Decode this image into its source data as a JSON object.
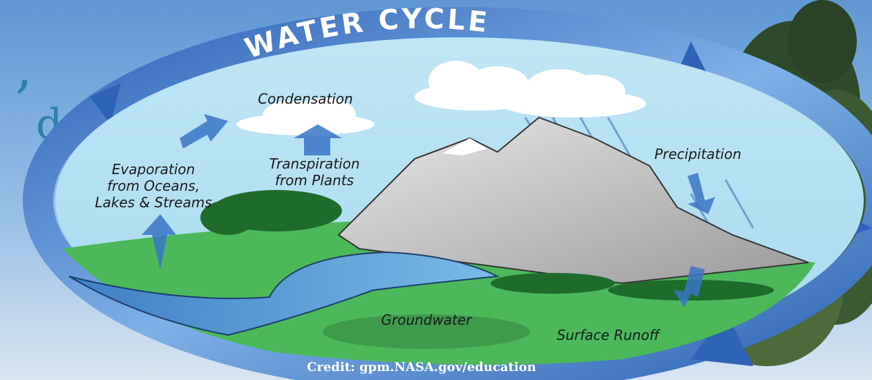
{
  "title": "WATER CYCLE",
  "background_text": [
    ",",
    "d"
  ],
  "labels": {
    "condensation": "Condensation",
    "evaporation": [
      "Evaporation",
      "from Oceans,",
      "Lakes & Streams"
    ],
    "transpiration": [
      "Transpiration",
      "from Plants"
    ],
    "precipitation": "Precipitation",
    "groundwater": "Groundwater",
    "surface_runoff": "Surface Runoff"
  },
  "credit": "Credit: gpm.NASA.gov/education"
}
